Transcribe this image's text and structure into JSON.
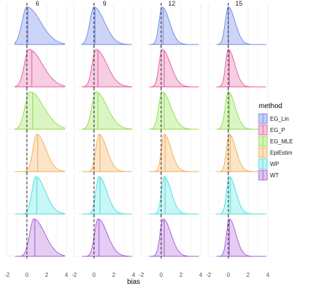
{
  "chart_data": {
    "type": "area",
    "subtype": "faceted density (ridge grid)",
    "xlabel": "bias",
    "xlim": [
      -2,
      4
    ],
    "x_ticks": [
      "-2",
      "0",
      "2",
      "4"
    ],
    "grid": true,
    "reference_line": {
      "x": 0,
      "style": "dashed"
    },
    "facets": {
      "columns": [
        "6",
        "9",
        "12",
        "15"
      ],
      "rows_by": "method"
    },
    "legend": {
      "title": "method",
      "position": "right",
      "entries": [
        {
          "name": "EG_Lin",
          "fill": "#c3cdf6",
          "line": "#6e88e6"
        },
        {
          "name": "EG_P",
          "fill": "#f5c4dc",
          "line": "#e5569b"
        },
        {
          "name": "EG_MLE",
          "fill": "#d4f3b8",
          "line": "#8fdc48"
        },
        {
          "name": "EpiEstim",
          "fill": "#fbe1be",
          "line": "#eead4f"
        },
        {
          "name": "WP",
          "fill": "#c0f5f5",
          "line": "#42dede"
        },
        {
          "name": "WT",
          "fill": "#dfc3f0",
          "line": "#a458d6"
        }
      ]
    },
    "series": [
      {
        "name": "EG_Lin",
        "median": [
          0.1,
          0.1,
          0.2,
          0.0
        ],
        "density": [
          {
            "mode": 0.0,
            "peak": 1.0,
            "spread": 1.4,
            "skew": 1.8
          },
          {
            "mode": 0.0,
            "peak": 1.0,
            "spread": 1.2,
            "skew": 1.6
          },
          {
            "mode": 0.1,
            "peak": 1.0,
            "spread": 0.9,
            "skew": 1.5
          },
          {
            "mode": 0.0,
            "peak": 1.0,
            "spread": 0.9,
            "skew": 1.4
          }
        ]
      },
      {
        "name": "EG_P",
        "median": [
          0.5,
          0.4,
          0.3,
          0.1
        ],
        "density": [
          {
            "mode": 0.2,
            "peak": 1.0,
            "spread": 1.3,
            "skew": 1.9
          },
          {
            "mode": 0.2,
            "peak": 1.0,
            "spread": 1.1,
            "skew": 1.8
          },
          {
            "mode": 0.1,
            "peak": 1.0,
            "spread": 0.9,
            "skew": 1.7
          },
          {
            "mode": 0.0,
            "peak": 1.0,
            "spread": 0.8,
            "skew": 1.5
          }
        ]
      },
      {
        "name": "EG_MLE",
        "median": [
          0.6,
          0.4,
          0.3,
          0.1
        ],
        "density": [
          {
            "mode": 0.3,
            "peak": 1.0,
            "spread": 1.4,
            "skew": 1.8
          },
          {
            "mode": 0.2,
            "peak": 1.0,
            "spread": 1.2,
            "skew": 1.7
          },
          {
            "mode": 0.1,
            "peak": 1.0,
            "spread": 1.0,
            "skew": 1.6
          },
          {
            "mode": 0.0,
            "peak": 1.0,
            "spread": 0.9,
            "skew": 1.4
          }
        ]
      },
      {
        "name": "EpiEstim",
        "median": [
          1.1,
          0.6,
          0.4,
          0.2
        ],
        "density": [
          {
            "mode": 1.0,
            "peak": 1.0,
            "spread": 1.1,
            "skew": 1.5
          },
          {
            "mode": 0.5,
            "peak": 1.0,
            "spread": 0.9,
            "skew": 1.6
          },
          {
            "mode": 0.3,
            "peak": 1.0,
            "spread": 0.8,
            "skew": 1.6
          },
          {
            "mode": 0.1,
            "peak": 1.0,
            "spread": 0.8,
            "skew": 1.5
          }
        ]
      },
      {
        "name": "WP",
        "median": [
          1.0,
          0.6,
          0.4,
          0.2
        ],
        "density": [
          {
            "mode": 0.9,
            "peak": 1.0,
            "spread": 1.1,
            "skew": 1.6
          },
          {
            "mode": 0.5,
            "peak": 1.0,
            "spread": 0.9,
            "skew": 1.6
          },
          {
            "mode": 0.3,
            "peak": 1.0,
            "spread": 0.8,
            "skew": 1.6
          },
          {
            "mode": 0.1,
            "peak": 1.0,
            "spread": 0.8,
            "skew": 1.5
          }
        ]
      },
      {
        "name": "WT",
        "median": [
          0.8,
          0.5,
          0.3,
          0.1
        ],
        "density": [
          {
            "mode": 0.7,
            "peak": 1.0,
            "spread": 1.2,
            "skew": 1.7
          },
          {
            "mode": 0.4,
            "peak": 1.0,
            "spread": 1.0,
            "skew": 1.7
          },
          {
            "mode": 0.2,
            "peak": 1.0,
            "spread": 0.9,
            "skew": 1.6
          },
          {
            "mode": 0.1,
            "peak": 1.0,
            "spread": 0.8,
            "skew": 1.5
          }
        ]
      }
    ]
  }
}
